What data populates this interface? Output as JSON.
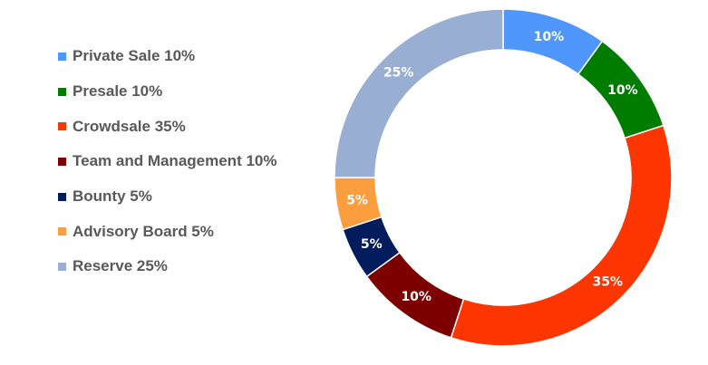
{
  "chart_data": {
    "type": "pie",
    "style": "donut",
    "start_angle_deg": 0,
    "direction": "clockwise",
    "legend_position": "left",
    "slices": [
      {
        "label": "Private Sale 10%",
        "value": 10,
        "data_label": "10%",
        "color": "#4F97FC"
      },
      {
        "label": "Presale 10%",
        "value": 10,
        "data_label": "10%",
        "color": "#007D00"
      },
      {
        "label": "Crowdsale 35%",
        "value": 35,
        "data_label": "35%",
        "color": "#FD3500"
      },
      {
        "label": "Team and Management 10%",
        "value": 10,
        "data_label": "10%",
        "color": "#7D0000"
      },
      {
        "label": "Bounty 5%",
        "value": 5,
        "data_label": "5%",
        "color": "#001C5C"
      },
      {
        "label": "Advisory Board 5%",
        "value": 5,
        "data_label": "5%",
        "color": "#FC9E3E"
      },
      {
        "label": "Reserve 25%",
        "value": 25,
        "data_label": "25%",
        "color": "#98AED3"
      }
    ]
  }
}
